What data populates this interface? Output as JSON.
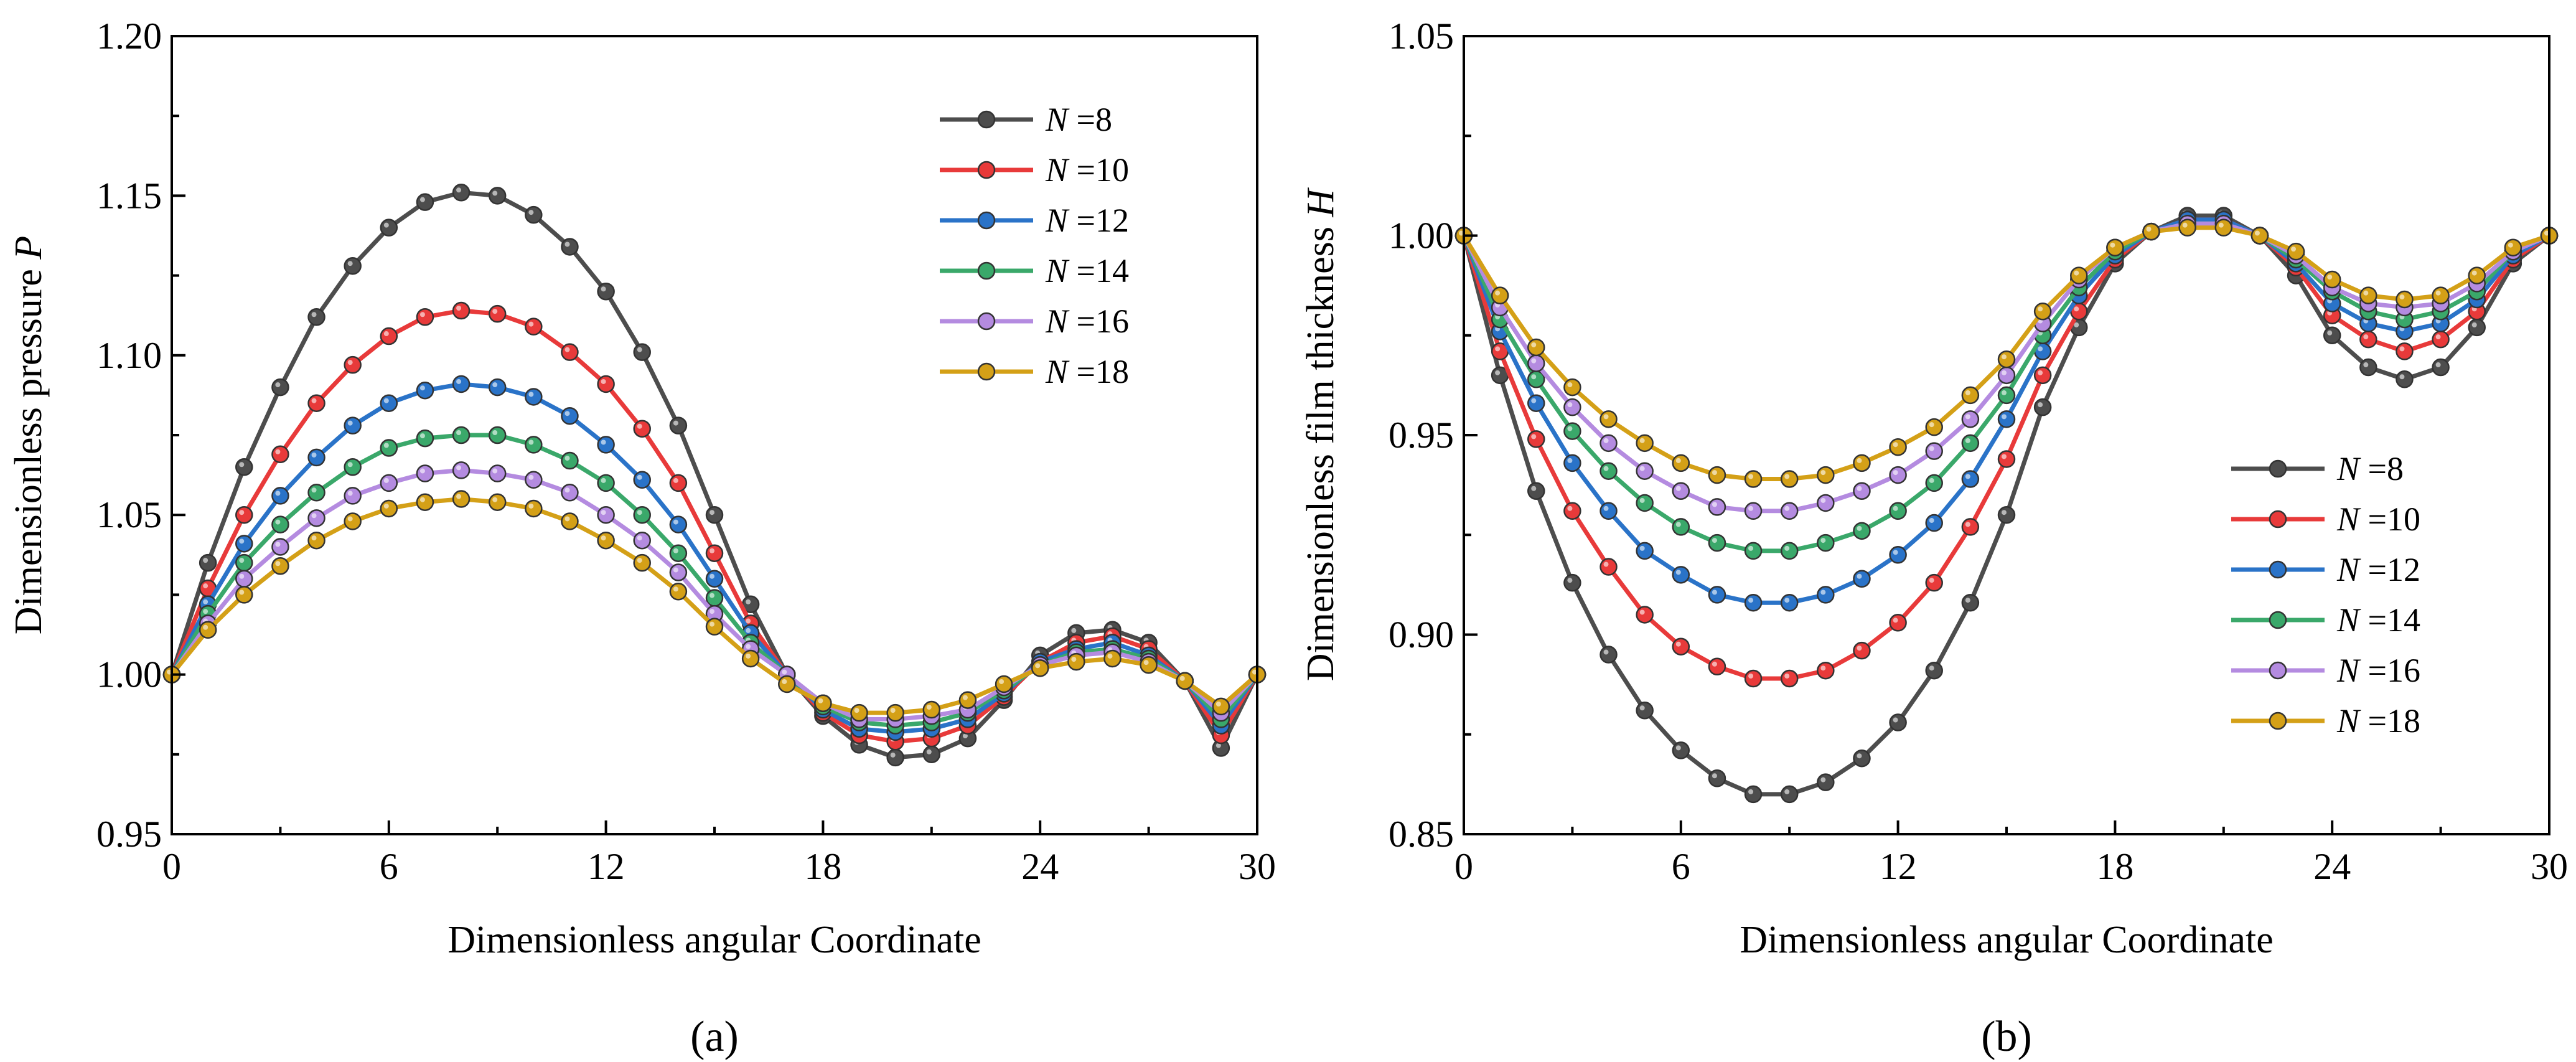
{
  "chart_data": [
    {
      "type": "line",
      "panel_label": "(a)",
      "xlabel": "Dimensionless angular Coordinate",
      "ylabel": "Dimensionless pressure ",
      "ylabel_var": "P",
      "xlim": [
        0,
        30
      ],
      "ylim": [
        0.95,
        1.2
      ],
      "xticks": [
        "0",
        "6",
        "12",
        "18",
        "24",
        "30"
      ],
      "xtick_values": [
        0,
        6,
        12,
        18,
        24,
        30
      ],
      "yticks": [
        "0.95",
        "1.00",
        "1.05",
        "1.10",
        "1.15",
        "1.20"
      ],
      "ytick_values": [
        0.95,
        1.0,
        1.05,
        1.1,
        1.15,
        1.2
      ],
      "legend_position": "top-right",
      "x": [
        0,
        1,
        2,
        3,
        4,
        5,
        6,
        7,
        8,
        9,
        10,
        11,
        12,
        13,
        14,
        15,
        16,
        17,
        18,
        19,
        20,
        21,
        22,
        23,
        24,
        25,
        26,
        27,
        28,
        29,
        30
      ],
      "series": [
        {
          "name_var": "N",
          "name_val": " =8",
          "color": "#4d4d4d",
          "values": [
            1.0,
            1.035,
            1.065,
            1.09,
            1.112,
            1.128,
            1.14,
            1.148,
            1.151,
            1.15,
            1.144,
            1.134,
            1.12,
            1.101,
            1.078,
            1.05,
            1.022,
            1.0,
            0.987,
            0.978,
            0.974,
            0.975,
            0.98,
            0.992,
            1.006,
            1.013,
            1.014,
            1.01,
            0.998,
            0.977,
            1.0
          ]
        },
        {
          "name_var": "N",
          "name_val": " =10",
          "color": "#e83a3a",
          "values": [
            1.0,
            1.027,
            1.05,
            1.069,
            1.085,
            1.097,
            1.106,
            1.112,
            1.114,
            1.113,
            1.109,
            1.101,
            1.091,
            1.077,
            1.06,
            1.038,
            1.016,
            1.0,
            0.988,
            0.981,
            0.979,
            0.98,
            0.984,
            0.993,
            1.004,
            1.01,
            1.012,
            1.008,
            0.998,
            0.981,
            1.0
          ]
        },
        {
          "name_var": "N",
          "name_val": " =12",
          "color": "#2a73c8",
          "values": [
            1.0,
            1.022,
            1.041,
            1.056,
            1.068,
            1.078,
            1.085,
            1.089,
            1.091,
            1.09,
            1.087,
            1.081,
            1.072,
            1.061,
            1.047,
            1.03,
            1.013,
            1.0,
            0.989,
            0.983,
            0.982,
            0.983,
            0.986,
            0.994,
            1.004,
            1.008,
            1.01,
            1.006,
            0.998,
            0.984,
            1.0
          ]
        },
        {
          "name_var": "N",
          "name_val": " =14",
          "color": "#3aa86a",
          "values": [
            1.0,
            1.019,
            1.035,
            1.047,
            1.057,
            1.065,
            1.071,
            1.074,
            1.075,
            1.075,
            1.072,
            1.067,
            1.06,
            1.05,
            1.038,
            1.024,
            1.01,
            1.0,
            0.99,
            0.985,
            0.984,
            0.985,
            0.988,
            0.995,
            1.003,
            1.007,
            1.008,
            1.005,
            0.998,
            0.986,
            1.0
          ]
        },
        {
          "name_var": "N",
          "name_val": " =16",
          "color": "#b48be0",
          "values": [
            1.0,
            1.016,
            1.03,
            1.04,
            1.049,
            1.056,
            1.06,
            1.063,
            1.064,
            1.063,
            1.061,
            1.057,
            1.05,
            1.042,
            1.032,
            1.019,
            1.008,
            1.0,
            0.991,
            0.986,
            0.986,
            0.987,
            0.989,
            0.996,
            1.003,
            1.006,
            1.007,
            1.004,
            0.998,
            0.988,
            1.0
          ]
        },
        {
          "name_var": "N",
          "name_val": " =18",
          "color": "#d4a017",
          "values": [
            1.0,
            1.014,
            1.025,
            1.034,
            1.042,
            1.048,
            1.052,
            1.054,
            1.055,
            1.054,
            1.052,
            1.048,
            1.042,
            1.035,
            1.026,
            1.015,
            1.005,
            0.997,
            0.991,
            0.988,
            0.988,
            0.989,
            0.992,
            0.997,
            1.002,
            1.004,
            1.005,
            1.003,
            0.998,
            0.99,
            1.0
          ]
        }
      ]
    },
    {
      "type": "line",
      "panel_label": "(b)",
      "xlabel": "Dimensionless angular Coordinate",
      "ylabel": "Dimensionless film thickness ",
      "ylabel_var": "H",
      "xlim": [
        0,
        30
      ],
      "ylim": [
        0.85,
        1.05
      ],
      "xticks": [
        "0",
        "6",
        "12",
        "18",
        "24",
        "30"
      ],
      "xtick_values": [
        0,
        6,
        12,
        18,
        24,
        30
      ],
      "yticks": [
        "0.85",
        "0.90",
        "0.95",
        "1.00",
        "1.05"
      ],
      "ytick_values": [
        0.85,
        0.9,
        0.95,
        1.0,
        1.05
      ],
      "legend_position": "center-right",
      "x": [
        0,
        1,
        2,
        3,
        4,
        5,
        6,
        7,
        8,
        9,
        10,
        11,
        12,
        13,
        14,
        15,
        16,
        17,
        18,
        19,
        20,
        21,
        22,
        23,
        24,
        25,
        26,
        27,
        28,
        29,
        30
      ],
      "series": [
        {
          "name_var": "N",
          "name_val": " =8",
          "color": "#4d4d4d",
          "values": [
            1.0,
            0.965,
            0.936,
            0.913,
            0.895,
            0.881,
            0.871,
            0.864,
            0.86,
            0.86,
            0.863,
            0.869,
            0.878,
            0.891,
            0.908,
            0.93,
            0.957,
            0.977,
            0.993,
            1.001,
            1.005,
            1.005,
            1.0,
            0.99,
            0.975,
            0.967,
            0.964,
            0.967,
            0.977,
            0.993,
            1.0
          ]
        },
        {
          "name_var": "N",
          "name_val": " =10",
          "color": "#e83a3a",
          "values": [
            1.0,
            0.971,
            0.949,
            0.931,
            0.917,
            0.905,
            0.897,
            0.892,
            0.889,
            0.889,
            0.891,
            0.896,
            0.903,
            0.913,
            0.927,
            0.944,
            0.965,
            0.981,
            0.994,
            1.001,
            1.004,
            1.004,
            1.0,
            0.992,
            0.98,
            0.974,
            0.971,
            0.974,
            0.981,
            0.994,
            1.0
          ]
        },
        {
          "name_var": "N",
          "name_val": " =12",
          "color": "#2a73c8",
          "values": [
            1.0,
            0.976,
            0.958,
            0.943,
            0.931,
            0.921,
            0.915,
            0.91,
            0.908,
            0.908,
            0.91,
            0.914,
            0.92,
            0.928,
            0.939,
            0.954,
            0.971,
            0.985,
            0.995,
            1.001,
            1.004,
            1.004,
            1.0,
            0.993,
            0.983,
            0.978,
            0.976,
            0.978,
            0.984,
            0.995,
            1.0
          ]
        },
        {
          "name_var": "N",
          "name_val": " =14",
          "color": "#3aa86a",
          "values": [
            1.0,
            0.979,
            0.964,
            0.951,
            0.941,
            0.933,
            0.927,
            0.923,
            0.921,
            0.921,
            0.923,
            0.926,
            0.931,
            0.938,
            0.948,
            0.96,
            0.975,
            0.987,
            0.996,
            1.001,
            1.003,
            1.003,
            1.0,
            0.994,
            0.986,
            0.981,
            0.979,
            0.981,
            0.986,
            0.996,
            1.0
          ]
        },
        {
          "name_var": "N",
          "name_val": " =16",
          "color": "#b48be0",
          "values": [
            1.0,
            0.982,
            0.968,
            0.957,
            0.948,
            0.941,
            0.936,
            0.932,
            0.931,
            0.931,
            0.933,
            0.936,
            0.94,
            0.946,
            0.954,
            0.965,
            0.978,
            0.989,
            0.997,
            1.001,
            1.003,
            1.003,
            1.0,
            0.995,
            0.987,
            0.983,
            0.982,
            0.983,
            0.988,
            0.996,
            1.0
          ]
        },
        {
          "name_var": "N",
          "name_val": " =18",
          "color": "#d4a017",
          "values": [
            1.0,
            0.985,
            0.972,
            0.962,
            0.954,
            0.948,
            0.943,
            0.94,
            0.939,
            0.939,
            0.94,
            0.943,
            0.947,
            0.952,
            0.96,
            0.969,
            0.981,
            0.99,
            0.997,
            1.001,
            1.002,
            1.002,
            1.0,
            0.996,
            0.989,
            0.985,
            0.984,
            0.985,
            0.99,
            0.997,
            1.0
          ]
        }
      ]
    }
  ]
}
